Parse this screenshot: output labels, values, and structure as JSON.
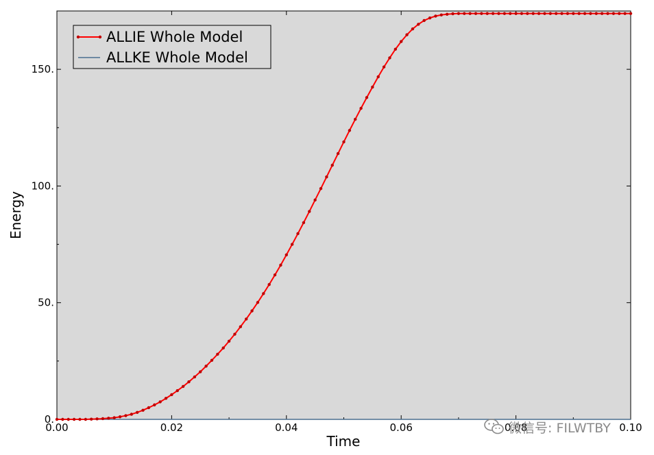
{
  "chart_data": {
    "type": "line",
    "title": "",
    "xlabel": "Time",
    "ylabel": "Energy",
    "xlim": [
      0.0,
      0.1
    ],
    "ylim": [
      0,
      175
    ],
    "x_ticks": [
      "0.00",
      "0.02",
      "0.04",
      "0.06",
      "0.08",
      "0.10"
    ],
    "y_ticks": [
      "0.",
      "50.",
      "100.",
      "150."
    ],
    "x_tick_values": [
      0.0,
      0.02,
      0.04,
      0.06,
      0.08,
      0.1
    ],
    "y_tick_values": [
      0,
      50,
      100,
      150
    ],
    "background": "#d9d9d9",
    "legend_position": "top-left",
    "series": [
      {
        "name": "ALLIE Whole Model",
        "color": "#ff0000",
        "marker": "dot",
        "x": [
          0.0,
          0.001,
          0.002,
          0.003,
          0.004,
          0.005,
          0.006,
          0.007,
          0.008,
          0.009,
          0.01,
          0.011,
          0.012,
          0.013,
          0.014,
          0.015,
          0.016,
          0.017,
          0.018,
          0.019,
          0.02,
          0.021,
          0.022,
          0.023,
          0.024,
          0.025,
          0.026,
          0.027,
          0.028,
          0.029,
          0.03,
          0.031,
          0.032,
          0.033,
          0.034,
          0.035,
          0.036,
          0.037,
          0.038,
          0.039,
          0.04,
          0.041,
          0.042,
          0.043,
          0.044,
          0.045,
          0.046,
          0.047,
          0.048,
          0.049,
          0.05,
          0.051,
          0.052,
          0.053,
          0.054,
          0.055,
          0.056,
          0.057,
          0.058,
          0.059,
          0.06,
          0.061,
          0.062,
          0.063,
          0.064,
          0.065,
          0.066,
          0.067,
          0.068,
          0.069,
          0.07,
          0.071,
          0.072,
          0.073,
          0.074,
          0.075,
          0.076,
          0.077,
          0.078,
          0.079,
          0.08,
          0.081,
          0.082,
          0.083,
          0.084,
          0.085,
          0.086,
          0.087,
          0.088,
          0.089,
          0.09,
          0.091,
          0.092,
          0.093,
          0.094,
          0.095,
          0.096,
          0.097,
          0.098,
          0.099,
          0.1
        ],
        "y": [
          0.0,
          0.0,
          0.0,
          0.0,
          0.0,
          0.0,
          0.1,
          0.2,
          0.3,
          0.5,
          0.7,
          1.1,
          1.6,
          2.2,
          3.0,
          3.9,
          5.0,
          6.2,
          7.5,
          9.0,
          10.6,
          12.3,
          14.1,
          16.1,
          18.2,
          20.4,
          22.8,
          25.3,
          27.9,
          30.6,
          33.5,
          36.5,
          39.7,
          43.0,
          46.5,
          50.1,
          53.9,
          57.8,
          61.9,
          66.1,
          70.5,
          75.0,
          79.6,
          84.3,
          89.1,
          94.0,
          98.9,
          103.9,
          108.9,
          113.9,
          118.9,
          123.8,
          128.6,
          133.3,
          137.9,
          142.4,
          146.8,
          151.0,
          154.9,
          158.6,
          161.9,
          164.8,
          167.3,
          169.3,
          170.9,
          172.0,
          172.8,
          173.3,
          173.6,
          173.8,
          173.9,
          173.9,
          173.9,
          173.9,
          173.9,
          173.9,
          173.9,
          173.9,
          173.9,
          173.9,
          173.9,
          173.9,
          173.9,
          173.9,
          173.9,
          173.9,
          173.9,
          173.9,
          173.9,
          173.9,
          173.9,
          173.9,
          173.9,
          173.9,
          173.9,
          173.9,
          173.9,
          173.9,
          173.9,
          173.9,
          173.9
        ]
      },
      {
        "name": "ALLKE Whole Model",
        "color": "#4a6f8f",
        "marker": "none",
        "x": [
          0.0,
          0.1
        ],
        "y": [
          0.0,
          0.0
        ]
      }
    ]
  },
  "watermark": {
    "text": "微信号: FILWTBY",
    "icon": "wechat-icon"
  }
}
